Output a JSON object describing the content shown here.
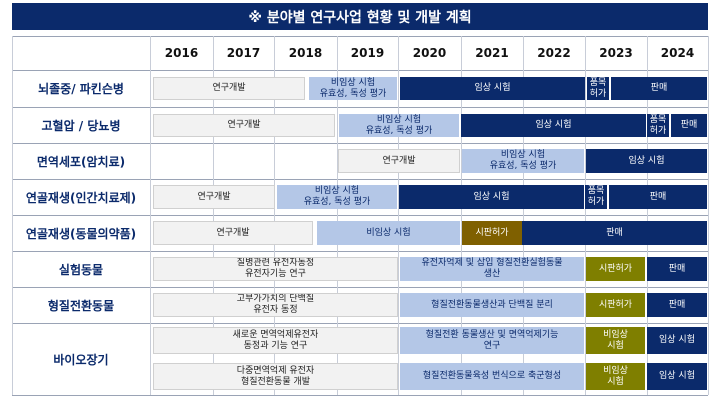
{
  "title": "※ 분야별 연구사업 현황 및 개발 계획",
  "years": [
    "2016",
    "2017",
    "2018",
    "2019",
    "2020",
    "2021",
    "2022",
    "2023",
    "2024"
  ],
  "rows": [
    {
      "label": "뇌졸중/ 파킨슨병",
      "bars": [
        "연구개발",
        "비임상 시험\n유효성, 독성 평가",
        "임상 시험",
        "품목\n허가",
        "판매"
      ]
    },
    {
      "label": "고혈압 / 당뇨병",
      "bars": [
        "연구개발",
        "비임상 시험\n유효성, 독성 평가",
        "임상 시험",
        "품목\n허가",
        "판매"
      ]
    },
    {
      "label": "면역세포(암치료)",
      "bars": [
        "연구개발",
        "비임상 시험\n유효성, 독성 평가",
        "임상 시험"
      ]
    },
    {
      "label": "연골재생(인간치료제)",
      "bars": [
        "연구개발",
        "비임상 시험\n유효성, 독성 평가",
        "임상 시험",
        "품목\n허가",
        "판매"
      ]
    },
    {
      "label": "연골재생(동물의약품)",
      "bars": [
        "연구개발",
        "비임상 시험",
        "시판허가",
        "판매"
      ]
    },
    {
      "label": "실험동물",
      "bars": [
        "질병관련 유전자동정\n유전자기능 연구",
        "유전자억제 및 삽입 형질전환실험동물\n생산",
        "시판허가",
        "판매"
      ]
    },
    {
      "label": "형질전환동물",
      "bars": [
        "고부가가치의 단백질\n유전자 동정",
        "형질전환동물생산과 단백질 분리",
        "시판허가",
        "판매"
      ]
    },
    {
      "label": "바이오장기",
      "bars": [
        "새로운 면역억제유전자\n동정과 기능 연구",
        "형질전환 동물생산 및 면역억제기능\n연구",
        "비임상\n시험",
        "임상 시험",
        "다중면역억제 유전자\n형질전환동물 개발",
        "형질전환동물육성 번식으로 축군형성",
        "비임상\n시험",
        "임상 시험"
      ]
    }
  ],
  "colors": {
    "navy": "#0b2a6b",
    "light_blue": "#b4c7e7",
    "gray": "#f2f2f2",
    "olive": "#7f6000"
  }
}
